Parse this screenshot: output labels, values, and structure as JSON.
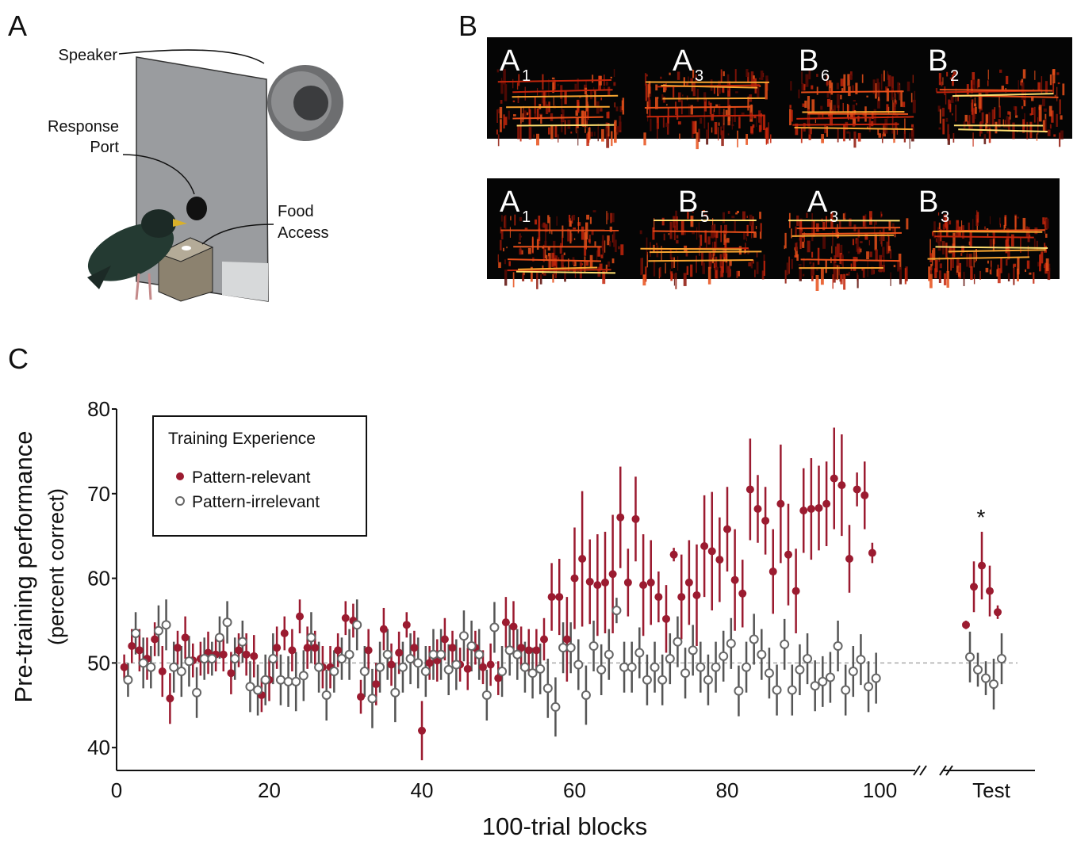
{
  "panel_a": {
    "label": "A",
    "speaker": "Speaker",
    "response_port": [
      "Response",
      "Port"
    ],
    "food_access": [
      "Food",
      "Access"
    ]
  },
  "panel_b": {
    "label": "B",
    "rows": [
      [
        {
          "letter": "A",
          "sub": "1"
        },
        {
          "letter": "A",
          "sub": "3"
        },
        {
          "letter": "B",
          "sub": "6"
        },
        {
          "letter": "B",
          "sub": "2"
        }
      ],
      [
        {
          "letter": "A",
          "sub": "1"
        },
        {
          "letter": "B",
          "sub": "5"
        },
        {
          "letter": "A",
          "sub": "3"
        },
        {
          "letter": "B",
          "sub": "3"
        }
      ]
    ]
  },
  "chart_data": {
    "type": "scatter",
    "panel_label": "C",
    "y_label": [
      "Pre-training performance",
      "(percent correct)"
    ],
    "x_label": "100-trial blocks",
    "xlim": [
      0,
      104
    ],
    "ylim": [
      37.3,
      80
    ],
    "xticks": [
      0,
      20,
      40,
      60,
      80,
      100
    ],
    "yticks": [
      40,
      50,
      60,
      70,
      80
    ],
    "reference_line": 50,
    "legend_title": "Training Experience",
    "series": [
      {
        "name": "Pattern-relevant",
        "color": "#9b1b30",
        "filled": true,
        "x": [
          1,
          2,
          3,
          4,
          5,
          6,
          7,
          8,
          9,
          10,
          11,
          12,
          13,
          14,
          15,
          16,
          17,
          18,
          19,
          20,
          21,
          22,
          23,
          24,
          25,
          26,
          27,
          28,
          29,
          30,
          31,
          32,
          33,
          34,
          35,
          36,
          37,
          38,
          39,
          40,
          41,
          42,
          43,
          44,
          45,
          46,
          47,
          48,
          49,
          50,
          51,
          52,
          53,
          54,
          55,
          56,
          57,
          58,
          59,
          60,
          61,
          62,
          63,
          64,
          65,
          66,
          67,
          68,
          69,
          70,
          71,
          72,
          73,
          74,
          75,
          76,
          77,
          78,
          79,
          80,
          81,
          82,
          83,
          84,
          85,
          86,
          87,
          88,
          89,
          90,
          91,
          92,
          93,
          94,
          95,
          96,
          97,
          98,
          99
        ],
        "values": [
          49.5,
          52,
          51.5,
          50.5,
          52.8,
          49,
          45.8,
          51.8,
          53,
          50.3,
          50.5,
          51.2,
          51,
          51,
          48.8,
          51.5,
          51,
          50.8,
          46.2,
          48,
          51.8,
          53.5,
          51.5,
          55.5,
          51.8,
          51.8,
          49.5,
          49.5,
          51.5,
          55.3,
          55,
          46,
          51.5,
          47.5,
          54,
          49.8,
          51.2,
          54.5,
          51.8,
          42,
          50,
          50.3,
          52.8,
          51.8,
          49.8,
          49.3,
          51.8,
          49.5,
          49.8,
          48.2,
          54.8,
          54.3,
          51.8,
          51.5,
          51.5,
          52.8,
          57.8,
          57.8,
          52.8,
          60,
          62.3,
          59.6,
          59.2,
          59.5,
          60.5,
          67.2,
          59.5,
          67,
          59.2,
          59.5,
          57.8,
          55.2,
          62.8,
          57.8,
          59.5,
          58,
          63.8,
          63.2,
          62.2,
          65.8,
          59.8,
          58.2,
          70.5,
          68.2,
          66.8,
          60.8,
          68.8,
          62.8,
          58.5,
          68,
          68.2,
          68.3,
          68.8,
          71.8,
          71,
          62.3,
          70.5,
          69.8,
          63
        ],
        "errors": [
          1.5,
          2,
          2.5,
          2.5,
          2,
          3,
          3,
          2,
          2.5,
          2,
          2,
          2.5,
          2,
          2,
          2.5,
          2,
          2.5,
          2.5,
          2,
          2.5,
          2.5,
          2,
          2.5,
          2,
          2.5,
          2,
          2.5,
          2.5,
          2,
          2,
          2,
          2,
          2.5,
          2.5,
          2.5,
          2.5,
          2.5,
          1.5,
          2,
          3.5,
          2,
          2.5,
          2.5,
          2,
          2,
          2.5,
          2,
          2,
          2.5,
          2,
          3,
          3,
          2.5,
          2.5,
          2.5,
          2.5,
          4,
          4.5,
          5,
          6,
          8,
          5,
          6,
          6,
          7,
          6,
          4,
          5,
          6,
          5,
          3,
          4,
          0.8,
          5,
          5,
          6,
          6,
          7,
          5,
          5,
          6,
          4,
          6,
          4,
          4,
          5,
          7,
          6,
          5,
          5,
          6,
          5,
          5,
          6,
          6,
          4,
          2,
          4,
          1.2
        ]
      },
      {
        "name": "Pattern-irrelevant",
        "color": "#666666",
        "filled": false,
        "x": [
          1.5,
          2.5,
          3.5,
          4.5,
          5.5,
          6.5,
          7.5,
          8.5,
          9.5,
          10.5,
          11.5,
          12.5,
          13.5,
          14.5,
          15.5,
          16.5,
          17.5,
          18.5,
          19.5,
          20.5,
          21.5,
          22.5,
          23.5,
          24.5,
          25.5,
          26.5,
          27.5,
          28.5,
          29.5,
          30.5,
          31.5,
          32.5,
          33.5,
          34.5,
          35.5,
          36.5,
          37.5,
          38.5,
          39.5,
          40.5,
          41.5,
          42.5,
          43.5,
          44.5,
          45.5,
          46.5,
          47.5,
          48.5,
          49.5,
          50.5,
          51.5,
          52.5,
          53.5,
          54.5,
          55.5,
          56.5,
          57.5,
          58.5,
          59.5,
          60.5,
          61.5,
          62.5,
          63.5,
          64.5,
          65.5,
          66.5,
          67.5,
          68.5,
          69.5,
          70.5,
          71.5,
          72.5,
          73.5,
          74.5,
          75.5,
          76.5,
          77.5,
          78.5,
          79.5,
          80.5,
          81.5,
          82.5,
          83.5,
          84.5,
          85.5,
          86.5,
          87.5,
          88.5,
          89.5,
          90.5,
          91.5,
          92.5,
          93.5,
          94.5,
          95.5,
          96.5,
          97.5,
          98.5,
          99.5
        ],
        "values": [
          48,
          53.5,
          50,
          49.5,
          53.8,
          54.5,
          49.5,
          49,
          50.2,
          46.5,
          50.5,
          50.5,
          53,
          54.8,
          50.5,
          52.5,
          47.2,
          46.8,
          48,
          50.5,
          48,
          47.8,
          47.8,
          48.5,
          53,
          49.5,
          46.2,
          49,
          50.5,
          51,
          54.5,
          49,
          45.8,
          49.5,
          51,
          46.5,
          49.5,
          50.5,
          50,
          49,
          51,
          51,
          49.2,
          49.8,
          53.2,
          52,
          51,
          46.2,
          54.2,
          49,
          51.5,
          51,
          49.5,
          48.8,
          49.3,
          47,
          44.8,
          51.8,
          51.8,
          49.8,
          46.2,
          52,
          49.2,
          51,
          56.2,
          49.5,
          49.5,
          51.2,
          48,
          49.5,
          48,
          50.5,
          52.5,
          48.8,
          51.5,
          49.5,
          48,
          49.5,
          50.8,
          52.3,
          46.7,
          49.5,
          52.8,
          51,
          48.8,
          46.8,
          52.2,
          46.8,
          49.2,
          50.5,
          47.3,
          47.8,
          48.3,
          52,
          46.8,
          49,
          50.4,
          47.2,
          48.2
        ],
        "errors": [
          2,
          2.5,
          3,
          2.5,
          3,
          3,
          3,
          3,
          3,
          3,
          2.5,
          2,
          2.5,
          2.5,
          2.5,
          2.5,
          3,
          3,
          3,
          3,
          3,
          3,
          3.5,
          3,
          3,
          3,
          3,
          2.5,
          2.5,
          3,
          3,
          3,
          3.5,
          3,
          3,
          3.5,
          3,
          3,
          3,
          3,
          3,
          3,
          3,
          3,
          3,
          3,
          3,
          3,
          3,
          3,
          3,
          3,
          3,
          3,
          3,
          3.5,
          3.5,
          3,
          3,
          3,
          3.5,
          3,
          3,
          3,
          1.5,
          3,
          3,
          3,
          3,
          3,
          3,
          3,
          3,
          3,
          3,
          3,
          3,
          3,
          3,
          3,
          3,
          3,
          3,
          3,
          3,
          3,
          3,
          3,
          3,
          3,
          3,
          3,
          3,
          3,
          3,
          3,
          3,
          3,
          3
        ]
      }
    ],
    "test": {
      "label": "Test",
      "annotation": "*",
      "series": [
        {
          "values": [
            54.5,
            59,
            61.5,
            58.5,
            56
          ],
          "errors": [
            0.5,
            3,
            4,
            3,
            0.8
          ]
        },
        {
          "values": [
            50.7,
            49.2,
            48.2,
            47.5,
            50.5
          ],
          "errors": [
            3,
            2,
            2,
            3,
            3
          ]
        }
      ]
    }
  }
}
